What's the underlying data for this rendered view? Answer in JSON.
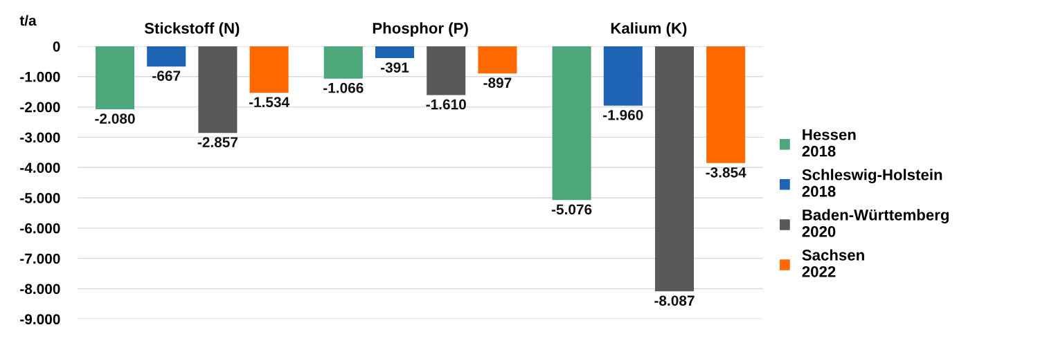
{
  "chart_data": {
    "type": "bar",
    "ylabel": "t/a",
    "categories": [
      "Stickstoff (N)",
      "Phosphor (P)",
      "Kalium (K)"
    ],
    "series": [
      {
        "name": "Hessen\n2018",
        "color": "#4ea77a",
        "values": [
          -2080,
          -1066,
          -5076
        ],
        "value_labels": [
          "-2.080",
          "-1.066",
          "-5.076"
        ]
      },
      {
        "name": "Schleswig-Holstein\n2018",
        "color": "#1f64b4",
        "values": [
          -667,
          -391,
          -1960
        ],
        "value_labels": [
          "-667",
          "-391",
          "-1.960"
        ]
      },
      {
        "name": "Baden-Württemberg\n2020",
        "color": "#595959",
        "values": [
          -2857,
          -1610,
          -8087
        ],
        "value_labels": [
          "-2.857",
          "-1.610",
          "-8.087"
        ]
      },
      {
        "name": "Sachsen\n2022",
        "color": "#ff6a00",
        "values": [
          -1534,
          -897,
          -3854
        ],
        "value_labels": [
          "-1.534",
          "-897",
          "-3.854"
        ]
      }
    ],
    "ylim": [
      -9000,
      0
    ],
    "yticks": [
      0,
      {
        "value": -1000,
        "label": "-1.000"
      },
      {
        "value": -2000,
        "label": "-2.000"
      },
      {
        "value": -3000,
        "label": "-3.000"
      },
      {
        "value": -4000,
        "label": "-4.000"
      },
      {
        "value": -5000,
        "label": "-5.000"
      },
      {
        "value": -6000,
        "label": "-6.000"
      },
      {
        "value": -7000,
        "label": "-7.000"
      },
      {
        "value": -8000,
        "label": "-8.000"
      },
      {
        "value": -9000,
        "label": "-9.000"
      }
    ],
    "grid": "y",
    "legend": "right"
  }
}
